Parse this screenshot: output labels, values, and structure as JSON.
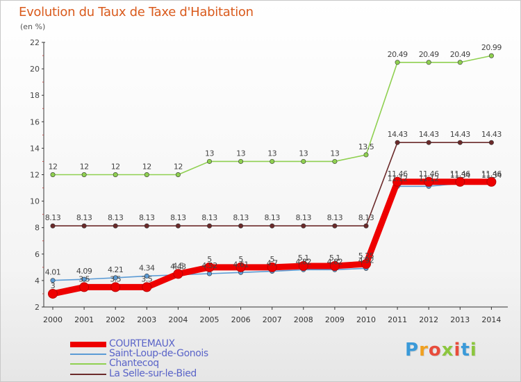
{
  "title": "Evolution du Taux de Taxe d'Habitation",
  "unit": "(en %)",
  "brand": {
    "letters": [
      "P",
      "r",
      "o",
      "x",
      "i",
      "t",
      "i"
    ],
    "colors": [
      "#3a9ad9",
      "#f0a020",
      "#e84c3c",
      "#8cc63e",
      "#e84c3c",
      "#3a9ad9",
      "#8cc63e"
    ]
  },
  "chart_data": {
    "type": "line",
    "x": [
      "2000",
      "2001",
      "2002",
      "2003",
      "2004",
      "2005",
      "2006",
      "2007",
      "2008",
      "2009",
      "2010",
      "2011",
      "2012",
      "2013",
      "2014"
    ],
    "ylim": [
      2,
      22
    ],
    "yticks": [
      "2",
      "4",
      "6",
      "8",
      "10",
      "12",
      "14",
      "16",
      "18",
      "20",
      "22"
    ],
    "grid": false,
    "legend_position": "bottom-left",
    "series": [
      {
        "name": "COURTEMAUX",
        "color": "#ee0000",
        "values": [
          3,
          3.5,
          3.5,
          3.5,
          4.5,
          5,
          5,
          5,
          5.1,
          5.1,
          5.25,
          11.46,
          11.46,
          11.46,
          11.46
        ],
        "labels": [
          "3",
          "3.5",
          "3.5",
          "3.5",
          "4.5",
          "5",
          "5",
          "5",
          "5.1",
          "5.1",
          "5.25",
          "11.46",
          "11.46",
          "11.46",
          "11.46"
        ]
      },
      {
        "name": "Saint-Loup-de-Gonois",
        "color": "#5b9bd5",
        "values": [
          4.01,
          4.09,
          4.21,
          4.34,
          4.43,
          4.52,
          4.61,
          4.7,
          4.82,
          4.82,
          4.92,
          11.12,
          11.12,
          11.34,
          11.34
        ],
        "labels": [
          "4.01",
          "4.09",
          "4.21",
          "4.34",
          "4.43",
          "4.52",
          "4.61",
          "4.7",
          "4.82",
          "4.82",
          "4.92",
          "11.12",
          "11.12",
          "11.34",
          "11.34"
        ]
      },
      {
        "name": "Chantecoq",
        "color": "#8fd050",
        "values": [
          12,
          12,
          12,
          12,
          12,
          13,
          13,
          13,
          13,
          13,
          13.5,
          20.49,
          20.49,
          20.49,
          20.99
        ],
        "labels": [
          "12",
          "12",
          "12",
          "12",
          "12",
          "13",
          "13",
          "13",
          "13",
          "13",
          "13.5",
          "20.49",
          "20.49",
          "20.49",
          "20.99"
        ]
      },
      {
        "name": "La Selle-sur-le-Bied",
        "color": "#6b2a2a",
        "values": [
          8.13,
          8.13,
          8.13,
          8.13,
          8.13,
          8.13,
          8.13,
          8.13,
          8.13,
          8.13,
          8.13,
          14.43,
          14.43,
          14.43,
          14.43
        ],
        "labels": [
          "8.13",
          "8.13",
          "8.13",
          "8.13",
          "8.13",
          "8.13",
          "8.13",
          "8.13",
          "8.13",
          "8.13",
          "8.13",
          "14.43",
          "14.43",
          "14.43",
          "14.43"
        ]
      }
    ]
  }
}
